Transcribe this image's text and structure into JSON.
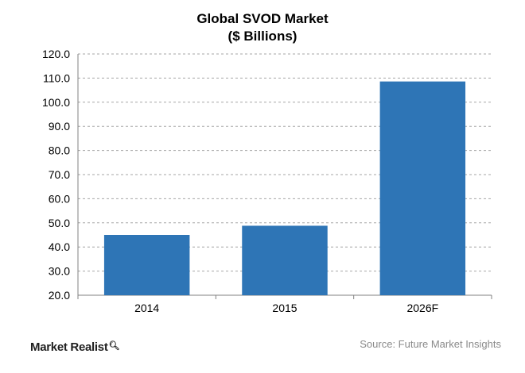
{
  "chart_data": {
    "type": "bar",
    "title": "Global SVOD Market",
    "subtitle": "($ Billions)",
    "categories": [
      "2014",
      "2015",
      "2026F"
    ],
    "values": [
      45.0,
      48.8,
      108.6
    ],
    "ylim": [
      20,
      120
    ],
    "yticks": [
      "20.0",
      "30.0",
      "40.0",
      "50.0",
      "60.0",
      "70.0",
      "80.0",
      "90.0",
      "100.0",
      "110.0",
      "120.0"
    ],
    "grid": true,
    "bar_color": "#2e75b6"
  },
  "brand": {
    "text": "Market Realist",
    "icon": "magnifier-icon"
  },
  "source": "Source: Future Market Insights"
}
